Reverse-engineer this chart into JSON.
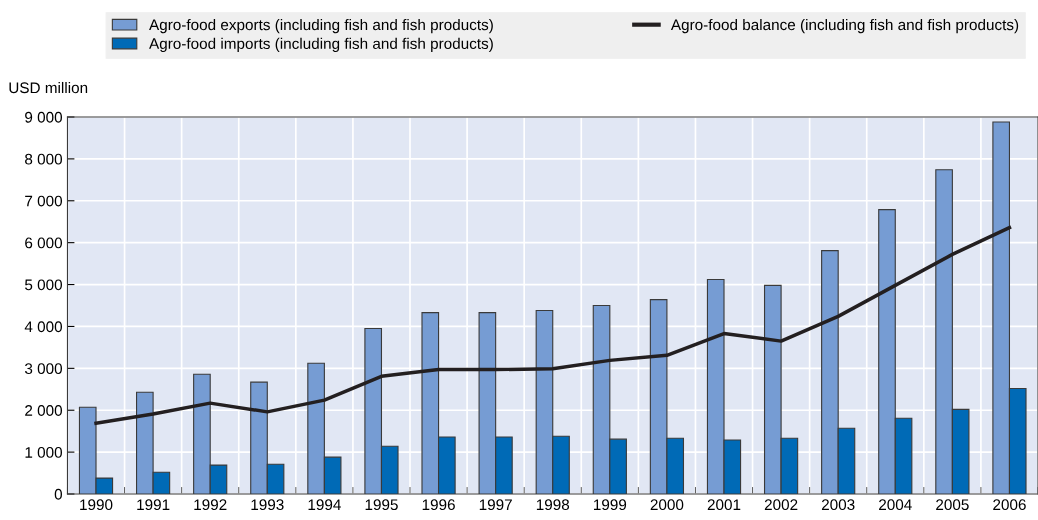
{
  "chart_data": {
    "type": "bar",
    "ylabel": "USD million",
    "categories": [
      "1990",
      "1991",
      "1992",
      "1993",
      "1994",
      "1995",
      "1996",
      "1997",
      "1998",
      "1999",
      "2000",
      "2001",
      "2002",
      "2003",
      "2004",
      "2005",
      "2006"
    ],
    "series": [
      {
        "name": "Agro-food exports (including fish and fish products)",
        "color": "#769cd3",
        "values": [
          2070,
          2430,
          2860,
          2670,
          3120,
          3950,
          4330,
          4330,
          4380,
          4500,
          4640,
          5120,
          4980,
          5810,
          6790,
          7740,
          8880
        ]
      },
      {
        "name": "Agro-food imports (including fish and fish products)",
        "color": "#006ab6",
        "values": [
          380,
          520,
          690,
          710,
          880,
          1140,
          1360,
          1360,
          1380,
          1310,
          1330,
          1290,
          1330,
          1570,
          1810,
          2020,
          2520
        ]
      },
      {
        "name": "Agro-food balance (including fish and fish products)",
        "type": "line",
        "color": "#231f20",
        "values": [
          1690,
          1910,
          2170,
          1960,
          2240,
          2810,
          2970,
          2970,
          2990,
          3190,
          3310,
          3830,
          3650,
          4240,
          4980,
          5720,
          6360
        ]
      }
    ],
    "ylim": [
      0,
      9000
    ],
    "yticks": [
      0,
      {
        "value": 1000,
        "label": "1 000"
      },
      {
        "value": 2000,
        "label": "2 000"
      },
      {
        "value": 3000,
        "label": "3 000"
      },
      {
        "value": 4000,
        "label": "4 000"
      },
      {
        "value": 5000,
        "label": "5 000"
      },
      {
        "value": 6000,
        "label": "6 000"
      },
      {
        "value": 7000,
        "label": "7 000"
      },
      {
        "value": 8000,
        "label": "8 000"
      },
      {
        "value": 9000,
        "label": "9 000"
      }
    ],
    "grid": true,
    "legend": "top",
    "marker": "none",
    "line_style": "solid"
  }
}
